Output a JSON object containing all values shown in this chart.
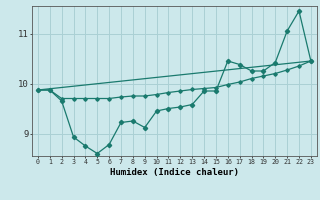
{
  "xlabel": "Humidex (Indice chaleur)",
  "bg_color": "#cce8eb",
  "grid_color": "#aad0d4",
  "line_color": "#1a7a6e",
  "xlim": [
    -0.5,
    23.5
  ],
  "ylim": [
    8.55,
    11.55
  ],
  "yticks": [
    9,
    10,
    11
  ],
  "xticks": [
    0,
    1,
    2,
    3,
    4,
    5,
    6,
    7,
    8,
    9,
    10,
    11,
    12,
    13,
    14,
    15,
    16,
    17,
    18,
    19,
    20,
    21,
    22,
    23
  ],
  "series1_x": [
    0,
    1,
    2,
    3,
    4,
    5,
    6,
    7,
    8,
    9,
    10,
    11,
    12,
    13,
    14,
    15,
    16,
    17,
    18,
    19,
    20,
    21,
    22,
    23
  ],
  "series1_y": [
    9.87,
    9.87,
    9.65,
    8.93,
    8.75,
    8.6,
    8.78,
    9.22,
    9.25,
    9.12,
    9.45,
    9.5,
    9.53,
    9.58,
    9.85,
    9.85,
    10.45,
    10.38,
    10.25,
    10.25,
    10.42,
    11.05,
    11.45,
    10.45
  ],
  "series2_x": [
    0,
    1,
    2,
    3,
    4,
    5,
    6,
    7,
    8,
    9,
    10,
    11,
    12,
    13,
    14,
    15,
    16,
    17,
    18,
    19,
    20,
    21,
    22,
    23
  ],
  "series2_y": [
    9.87,
    9.87,
    9.7,
    9.7,
    9.7,
    9.7,
    9.7,
    9.73,
    9.75,
    9.75,
    9.78,
    9.82,
    9.85,
    9.88,
    9.9,
    9.92,
    9.98,
    10.03,
    10.1,
    10.15,
    10.2,
    10.27,
    10.35,
    10.45
  ],
  "series3_x": [
    0,
    23
  ],
  "series3_y": [
    9.87,
    10.45
  ]
}
